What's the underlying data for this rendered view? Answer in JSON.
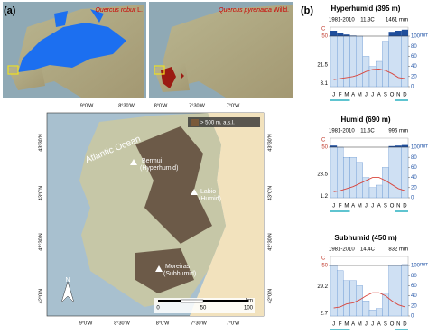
{
  "panel_a": {
    "label": "(a)",
    "map_left": {
      "species": "Quercus robur",
      "author": "L."
    },
    "map_right": {
      "species": "Quercus pyrenaica",
      "author": "Willd."
    },
    "top_lon": [
      "9°0'W",
      "8°30'W",
      "8°0'W",
      "7°30'W",
      "7°0'W"
    ],
    "bottom_lon": [
      "9°0'W",
      "8°30'W",
      "8°0'W",
      "7°30'W",
      "7°0'W"
    ],
    "lat": [
      "43°30'N",
      "43°0'N",
      "42°30'N",
      "42°0'N"
    ],
    "legend": "> 500 m. a.s.l.",
    "ocean": "Atlantic Ocean",
    "sites": [
      {
        "name": "Bermui",
        "zone": "(Hyperhumid)"
      },
      {
        "name": "Labio",
        "zone": "(Humid)"
      },
      {
        "name": "Moreiras",
        "zone": "(Subhumid)"
      }
    ],
    "north": "N",
    "scale": [
      "0",
      "50",
      "100"
    ],
    "scale_unit": "km"
  },
  "panel_b": {
    "label": "(b)",
    "months": [
      "J",
      "F",
      "M",
      "A",
      "M",
      "J",
      "J",
      "A",
      "S",
      "O",
      "N",
      "D"
    ],
    "temp_unit": "C",
    "precip_unit": "mm",
    "temp_lim": [
      0,
      50
    ],
    "temp_ticks": [
      50
    ],
    "precip_lim": [
      0,
      100
    ],
    "precip_ticks": [
      0,
      20,
      40,
      60,
      80,
      100
    ],
    "diagrams": [
      {
        "title": "Hyperhumid (395 m)",
        "period": "1981-2010",
        "mean_temp": "11.3C",
        "annual_precip": "1461 mm",
        "max_label": 21.5,
        "min_label": 3.1,
        "precipitation": [
          200,
          160,
          130,
          110,
          100,
          60,
          40,
          50,
          90,
          180,
          200,
          220
        ],
        "temperature": [
          7,
          8,
          9,
          10,
          12,
          15,
          17,
          17.5,
          16,
          13,
          9,
          8
        ]
      },
      {
        "title": "Humid (690 m)",
        "period": "1981-2010",
        "mean_temp": "11.6C",
        "annual_precip": "996 mm",
        "max_label": 23.5,
        "min_label": 1.2,
        "precipitation": [
          130,
          100,
          80,
          80,
          70,
          40,
          20,
          25,
          60,
          120,
          130,
          140
        ],
        "temperature": [
          6,
          7,
          9,
          11,
          14,
          17,
          20,
          20,
          17,
          13,
          9,
          7
        ]
      },
      {
        "title": "Subhumid (450 m)",
        "period": "1981-2010",
        "mean_temp": "14.4C",
        "annual_precip": "832 mm",
        "max_label": 29.2,
        "min_label": 2.7,
        "precipitation": [
          110,
          90,
          70,
          70,
          60,
          30,
          12,
          15,
          45,
          100,
          110,
          120
        ],
        "temperature": [
          8,
          9,
          12,
          13,
          16,
          20,
          23,
          23,
          20,
          15,
          11,
          9
        ]
      }
    ]
  }
}
